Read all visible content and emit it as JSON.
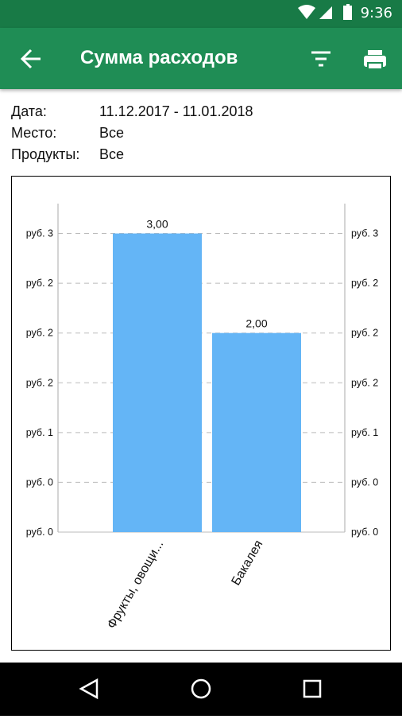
{
  "status_bar": {
    "time": "9:36"
  },
  "app_bar": {
    "title": "Сумма расходов"
  },
  "filters": [
    {
      "label": "Дата:",
      "value": "11.12.2017 - 11.01.2018"
    },
    {
      "label": "Место:",
      "value": "Все"
    },
    {
      "label": "Продукты:",
      "value": "Все"
    }
  ],
  "chart_data": {
    "type": "bar",
    "categories": [
      "Фрукты, овощи...",
      "Бакалея"
    ],
    "values": [
      3,
      2
    ],
    "value_labels": [
      "3,00",
      "2,00"
    ],
    "color": "#64b5f6",
    "ylim": [
      0,
      3.3
    ],
    "yticks": [
      {
        "value": 0,
        "label": "руб. 0"
      },
      {
        "value": 0.5,
        "label": "руб. 0"
      },
      {
        "value": 1,
        "label": "руб. 1"
      },
      {
        "value": 1.5,
        "label": "руб. 2"
      },
      {
        "value": 2,
        "label": "руб. 2"
      },
      {
        "value": 2.5,
        "label": "руб. 2"
      },
      {
        "value": 3,
        "label": "руб. 3"
      }
    ],
    "grid": true
  }
}
